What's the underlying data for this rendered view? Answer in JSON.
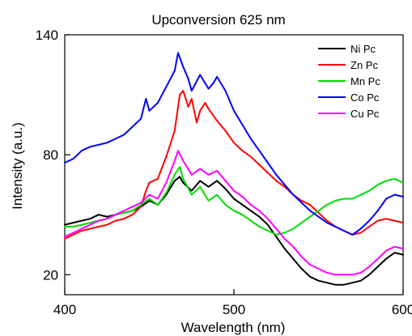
{
  "chart_data": {
    "type": "line",
    "title": "Upconversion 625 nm",
    "xlabel": "Wavelength (nm)",
    "ylabel": "Intensity (a.u.)",
    "xlim": [
      400,
      600
    ],
    "ylim": [
      10,
      140
    ],
    "xticks": [
      400,
      500,
      600
    ],
    "yticks": [
      20,
      80,
      140
    ],
    "grid": false,
    "legend": "top-right",
    "series": [
      {
        "name": "Ni Pc",
        "color": "#000000",
        "x": [
          400,
          405,
          410,
          415,
          420,
          425,
          430,
          435,
          440,
          445,
          450,
          455,
          460,
          465,
          468,
          470,
          475,
          480,
          485,
          490,
          495,
          500,
          505,
          510,
          515,
          520,
          525,
          530,
          535,
          540,
          545,
          550,
          555,
          560,
          565,
          570,
          575,
          580,
          585,
          590,
          595,
          600
        ],
        "y": [
          45,
          46,
          47,
          48,
          50,
          49,
          50,
          51,
          52,
          54,
          57,
          55,
          60,
          67,
          69,
          66,
          62,
          67,
          64,
          67,
          63,
          58,
          55,
          52,
          49,
          45,
          39,
          33,
          28,
          23,
          19,
          17,
          16,
          15,
          15,
          16,
          17,
          20,
          24,
          28,
          31,
          30
        ]
      },
      {
        "name": "Zn Pc",
        "color": "#ff0000",
        "x": [
          400,
          405,
          410,
          415,
          420,
          425,
          430,
          435,
          440,
          445,
          448,
          450,
          455,
          460,
          465,
          468,
          470,
          473,
          475,
          478,
          480,
          483,
          485,
          490,
          495,
          500,
          505,
          510,
          515,
          520,
          525,
          530,
          535,
          540,
          545,
          550,
          555,
          560,
          565,
          570,
          575,
          580,
          585,
          590,
          595,
          600
        ],
        "y": [
          38,
          40,
          42,
          43,
          44,
          45,
          47,
          48,
          50,
          54,
          62,
          66,
          68,
          79,
          92,
          110,
          112,
          104,
          108,
          96,
          102,
          106,
          103,
          97,
          92,
          86,
          82,
          79,
          75,
          71,
          67,
          64,
          60,
          57,
          55,
          51,
          47,
          44,
          42,
          40,
          41,
          44,
          47,
          48,
          47,
          46
        ]
      },
      {
        "name": "Mn Pc",
        "color": "#00dd00",
        "x": [
          400,
          405,
          410,
          415,
          420,
          425,
          430,
          435,
          440,
          445,
          450,
          455,
          460,
          465,
          468,
          470,
          475,
          480,
          485,
          490,
          495,
          500,
          505,
          510,
          515,
          520,
          525,
          530,
          535,
          540,
          545,
          550,
          555,
          560,
          565,
          570,
          575,
          580,
          585,
          590,
          595,
          600
        ],
        "y": [
          44,
          44,
          45,
          46,
          47,
          48,
          50,
          51,
          52,
          55,
          58,
          55,
          61,
          70,
          74,
          68,
          60,
          64,
          57,
          60,
          55,
          52,
          50,
          47,
          44,
          42,
          40,
          41,
          43,
          46,
          49,
          52,
          55,
          57,
          58,
          58,
          60,
          62,
          65,
          67,
          68,
          66
        ]
      },
      {
        "name": "Co Pc",
        "color": "#0000ff",
        "x": [
          400,
          405,
          410,
          415,
          420,
          425,
          430,
          435,
          440,
          445,
          448,
          450,
          455,
          460,
          465,
          467,
          470,
          473,
          475,
          480,
          485,
          488,
          490,
          495,
          500,
          505,
          510,
          515,
          520,
          525,
          530,
          535,
          540,
          545,
          550,
          555,
          560,
          565,
          570,
          575,
          580,
          585,
          590,
          595,
          600
        ],
        "y": [
          76,
          78,
          82,
          84,
          85,
          86,
          88,
          90,
          94,
          98,
          108,
          102,
          106,
          114,
          122,
          131,
          124,
          118,
          112,
          120,
          113,
          116,
          119,
          112,
          102,
          95,
          88,
          82,
          76,
          70,
          65,
          60,
          56,
          52,
          49,
          46,
          44,
          42,
          40,
          43,
          47,
          52,
          58,
          60,
          59
        ]
      },
      {
        "name": "Cu Pc",
        "color": "#ff00ff",
        "x": [
          400,
          405,
          410,
          415,
          420,
          425,
          430,
          435,
          440,
          445,
          450,
          455,
          460,
          465,
          467,
          470,
          475,
          480,
          485,
          490,
          495,
          500,
          505,
          510,
          515,
          520,
          525,
          530,
          535,
          540,
          545,
          550,
          555,
          560,
          565,
          570,
          575,
          580,
          585,
          590,
          595,
          600
        ],
        "y": [
          39,
          41,
          43,
          45,
          47,
          48,
          50,
          52,
          54,
          56,
          60,
          58,
          66,
          77,
          82,
          77,
          70,
          73,
          70,
          72,
          67,
          62,
          59,
          55,
          52,
          48,
          43,
          38,
          34,
          29,
          25,
          23,
          21,
          20,
          20,
          20,
          21,
          24,
          28,
          32,
          34,
          33
        ]
      }
    ]
  }
}
